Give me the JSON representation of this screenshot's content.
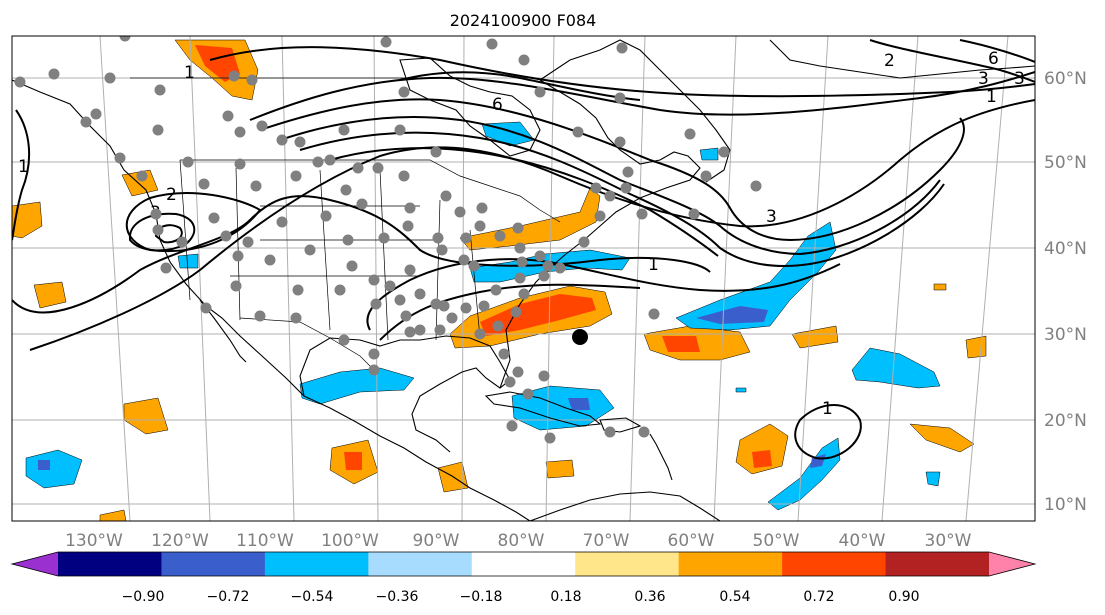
{
  "title": "2024100900 F084",
  "longitude_labels": [
    "130°W",
    "120°W",
    "110°W",
    "100°W",
    "90°W",
    "80°W",
    "70°W",
    "60°W",
    "50°W",
    "40°W",
    "30°W"
  ],
  "latitude_labels": [
    "60°N",
    "50°N",
    "40°N",
    "30°N",
    "20°N",
    "10°N"
  ],
  "contour_labels": [
    "1",
    "2",
    "3",
    "6",
    "2",
    "3",
    "1",
    "6",
    "3",
    "1",
    "1",
    "3",
    "1"
  ],
  "colorbar": {
    "tick_labels": [
      "−0.90",
      "−0.72",
      "−0.54",
      "−0.36",
      "−0.18",
      "0.18",
      "0.36",
      "0.54",
      "0.72",
      "0.90"
    ],
    "colors": [
      "#9b30d0",
      "#000080",
      "#3a5fcd",
      "#00bfff",
      "#a8dcff",
      "#ffffff",
      "#ffe68a",
      "#ffa500",
      "#ff4500",
      "#b22222",
      "#ff82ab"
    ]
  },
  "shading_colors": {
    "light_blue": "#a8dcff",
    "blue": "#00bfff",
    "mid_blue": "#3a5fcd",
    "yellow": "#ffe68a",
    "orange": "#ffa500",
    "red_orange": "#ff4500"
  },
  "stations_color": "#808080",
  "marker_color": "#000000"
}
